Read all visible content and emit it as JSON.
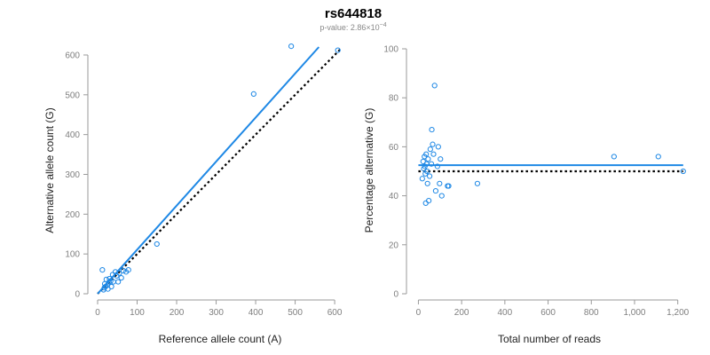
{
  "header": {
    "title": "rs644818",
    "subtitle_prefix": "p-value: 2.86×10",
    "subtitle_exponent": "−4"
  },
  "colors": {
    "accent": "#1e88e5",
    "reference_line": "#000000",
    "axis": "#9a9a9a",
    "tick_text": "#7f7f7f"
  },
  "chart_data": [
    {
      "type": "scatter",
      "xlabel": "Reference allele count (A)",
      "ylabel": "Alternative allele count (G)",
      "xlim": [
        0,
        620
      ],
      "ylim": [
        0,
        620
      ],
      "xticks": [
        0,
        100,
        200,
        300,
        400,
        500,
        600
      ],
      "yticks": [
        0,
        100,
        200,
        300,
        400,
        500,
        600
      ],
      "xtick_labels": [
        "0",
        "100",
        "200",
        "300",
        "400",
        "500",
        "600"
      ],
      "ytick_labels": [
        "0",
        "100",
        "200",
        "300",
        "400",
        "500",
        "600"
      ],
      "grid": false,
      "points": [
        {
          "x": 12,
          "y": 60
        },
        {
          "x": 15,
          "y": 10
        },
        {
          "x": 17,
          "y": 15
        },
        {
          "x": 20,
          "y": 18
        },
        {
          "x": 22,
          "y": 36
        },
        {
          "x": 25,
          "y": 22
        },
        {
          "x": 28,
          "y": 28
        },
        {
          "x": 30,
          "y": 38
        },
        {
          "x": 33,
          "y": 32
        },
        {
          "x": 35,
          "y": 18
        },
        {
          "x": 38,
          "y": 48
        },
        {
          "x": 40,
          "y": 30
        },
        {
          "x": 45,
          "y": 55
        },
        {
          "x": 48,
          "y": 45
        },
        {
          "x": 52,
          "y": 30
        },
        {
          "x": 55,
          "y": 52
        },
        {
          "x": 60,
          "y": 40
        },
        {
          "x": 65,
          "y": 58
        },
        {
          "x": 72,
          "y": 55
        },
        {
          "x": 78,
          "y": 60
        },
        {
          "x": 150,
          "y": 125
        },
        {
          "x": 395,
          "y": 502
        },
        {
          "x": 490,
          "y": 622
        },
        {
          "x": 608,
          "y": 612
        },
        {
          "x": 18,
          "y": 25
        },
        {
          "x": 26,
          "y": 12
        }
      ],
      "fit_line": {
        "x": [
          0,
          560
        ],
        "y": [
          0,
          620
        ]
      },
      "reference_line": {
        "x": [
          0,
          615
        ],
        "y": [
          0,
          615
        ]
      }
    },
    {
      "type": "scatter",
      "xlabel": "Total number of reads",
      "ylabel": "Percentage alternative (G)",
      "xlim": [
        -10,
        1230
      ],
      "ylim": [
        0,
        100
      ],
      "xticks": [
        0,
        200,
        400,
        600,
        800,
        1000,
        1200
      ],
      "yticks": [
        0,
        20,
        40,
        60,
        80,
        100
      ],
      "xtick_labels": [
        "0",
        "200",
        "400",
        "600",
        "800",
        "1,000",
        "1,200"
      ],
      "ytick_labels": [
        "0",
        "20",
        "40",
        "60",
        "80",
        "100"
      ],
      "grid": false,
      "points": [
        {
          "x": 18,
          "y": 47
        },
        {
          "x": 22,
          "y": 54
        },
        {
          "x": 25,
          "y": 51
        },
        {
          "x": 28,
          "y": 56
        },
        {
          "x": 30,
          "y": 52
        },
        {
          "x": 32,
          "y": 49
        },
        {
          "x": 34,
          "y": 37
        },
        {
          "x": 36,
          "y": 57
        },
        {
          "x": 38,
          "y": 53
        },
        {
          "x": 40,
          "y": 50
        },
        {
          "x": 42,
          "y": 45
        },
        {
          "x": 45,
          "y": 55
        },
        {
          "x": 48,
          "y": 38
        },
        {
          "x": 52,
          "y": 48
        },
        {
          "x": 55,
          "y": 59
        },
        {
          "x": 60,
          "y": 53
        },
        {
          "x": 62,
          "y": 67
        },
        {
          "x": 66,
          "y": 61
        },
        {
          "x": 70,
          "y": 57
        },
        {
          "x": 75,
          "y": 85
        },
        {
          "x": 80,
          "y": 42
        },
        {
          "x": 88,
          "y": 52
        },
        {
          "x": 92,
          "y": 60
        },
        {
          "x": 98,
          "y": 45
        },
        {
          "x": 102,
          "y": 55
        },
        {
          "x": 108,
          "y": 40
        },
        {
          "x": 135,
          "y": 44
        },
        {
          "x": 140,
          "y": 44
        },
        {
          "x": 273,
          "y": 45
        },
        {
          "x": 905,
          "y": 56
        },
        {
          "x": 1110,
          "y": 56
        },
        {
          "x": 1225,
          "y": 50
        }
      ],
      "fit_line": {
        "x": [
          0,
          1225
        ],
        "y": [
          52.5,
          52.5
        ]
      },
      "reference_line": {
        "x": [
          0,
          1225
        ],
        "y": [
          50,
          50
        ]
      }
    }
  ]
}
